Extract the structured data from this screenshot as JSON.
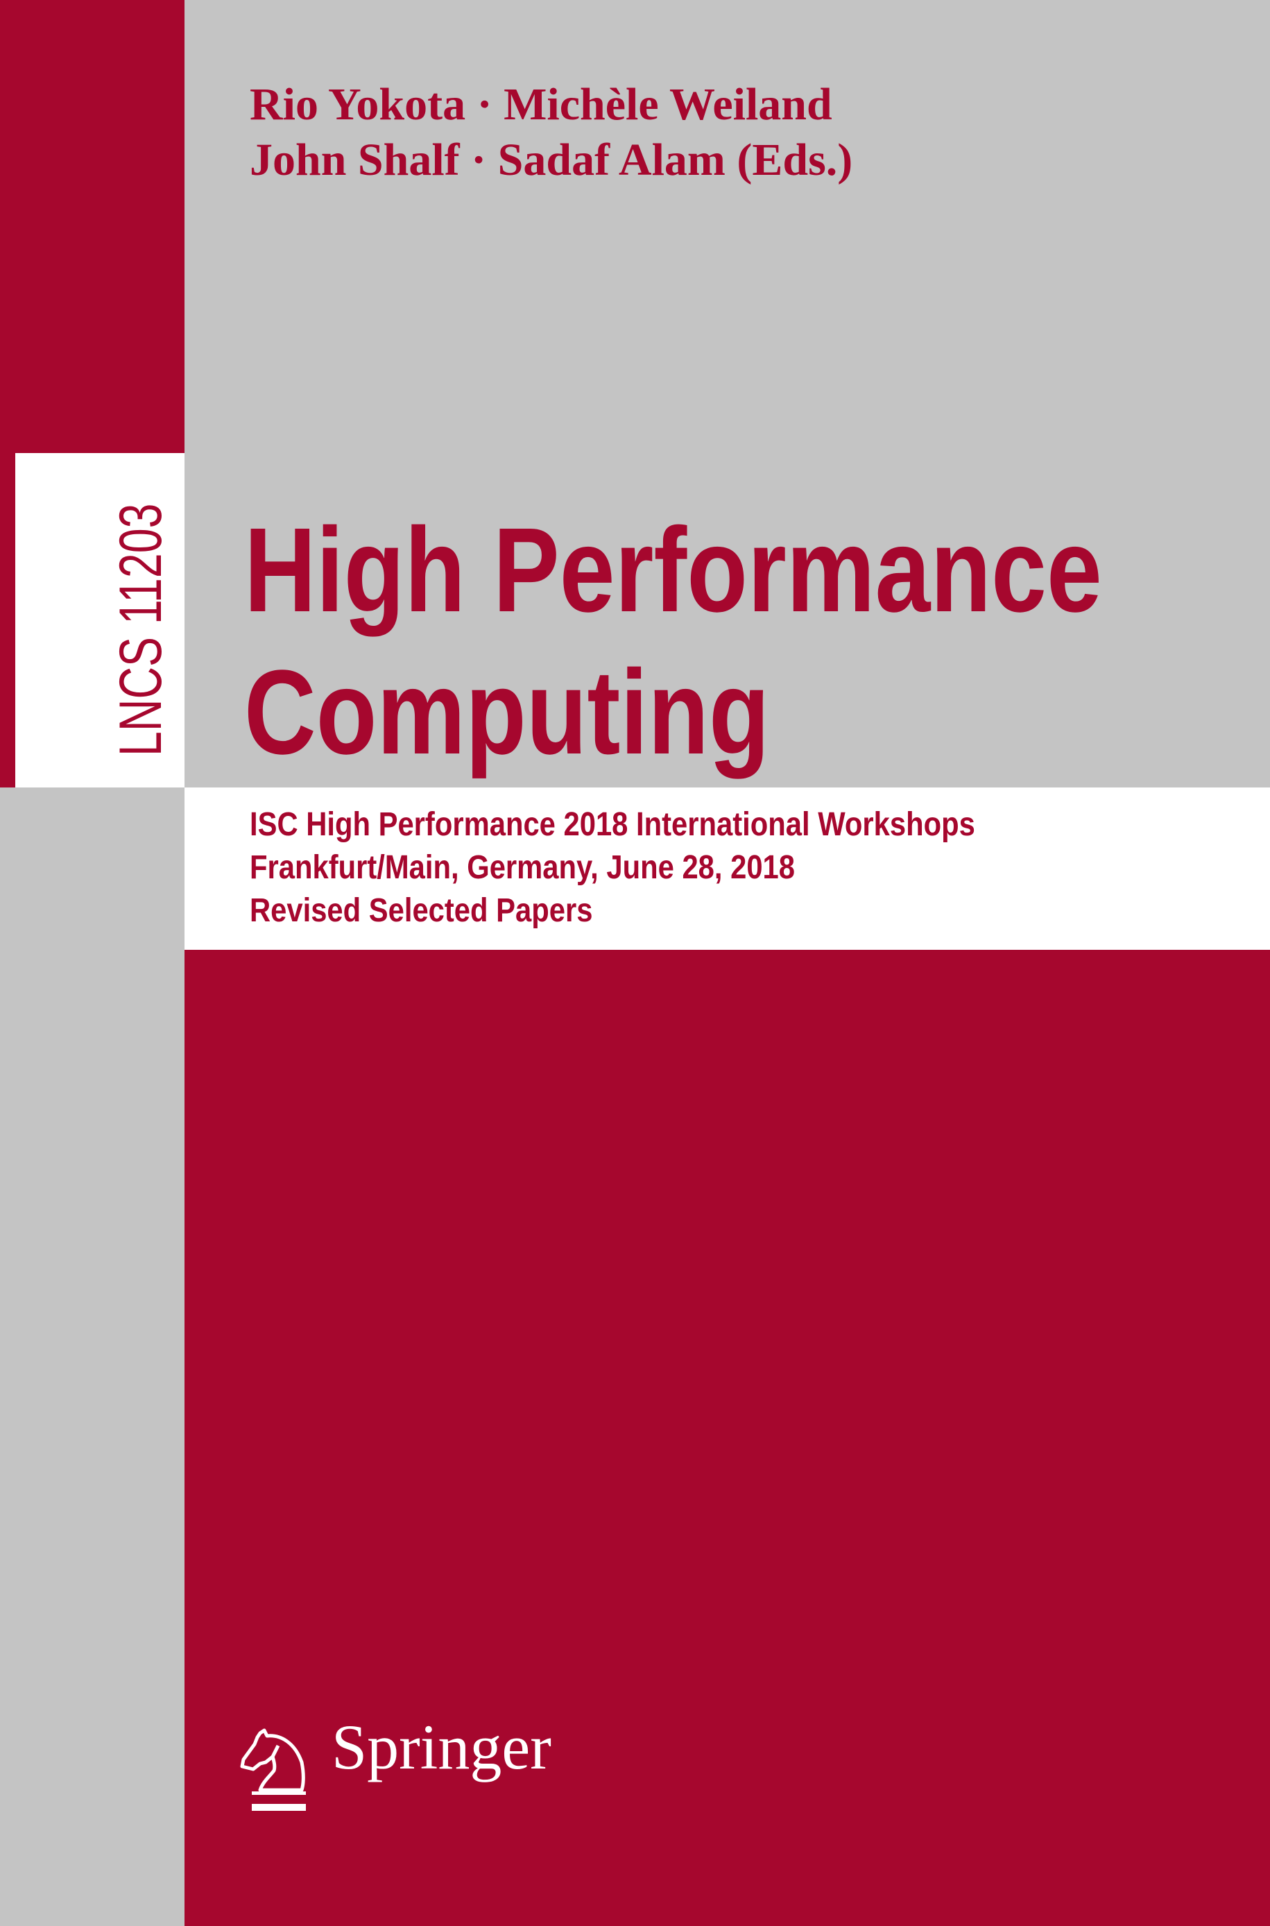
{
  "colors": {
    "brand_red": "#a6072e",
    "grey": "#c4c4c4",
    "white": "#ffffff"
  },
  "series_label": "LNCS 11203",
  "authors": {
    "line1": "Rio Yokota · Michèle Weiland",
    "line2": "John Shalf · Sadaf Alam (Eds.)"
  },
  "title": {
    "line1": "High Performance",
    "line2": "Computing"
  },
  "subtitle": {
    "line1": "ISC High Performance 2018 International Workshops",
    "line2": "Frankfurt/Main, Germany, June 28, 2018",
    "line3": "Revised Selected Papers"
  },
  "publisher": {
    "name": "Springer",
    "logo_icon": "knight-horse-icon"
  }
}
